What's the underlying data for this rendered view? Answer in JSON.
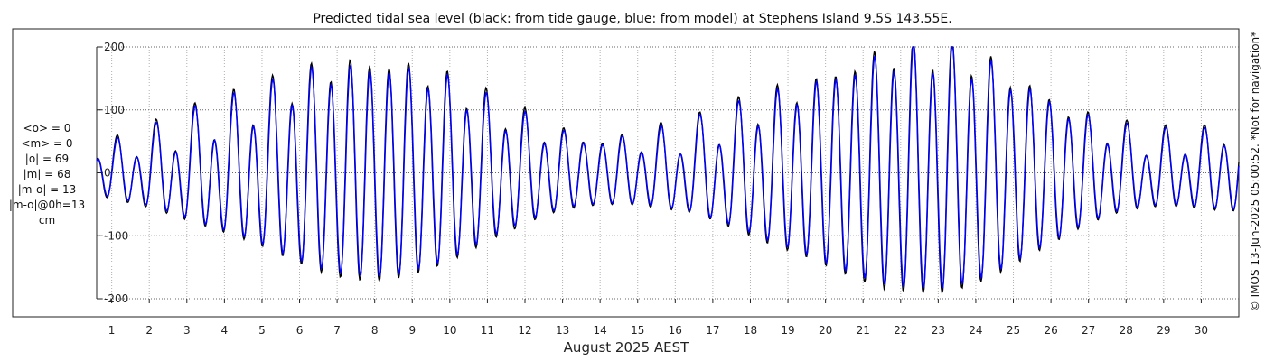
{
  "chart_data": {
    "type": "line",
    "title": "Predicted tidal sea level (black: from tide gauge, blue: from model) at Stephens Island 9.5S 143.55E.",
    "xlabel": "August 2025 AEST",
    "ylabel": "",
    "x_ticks": [
      "1",
      "2",
      "3",
      "4",
      "5",
      "6",
      "7",
      "8",
      "9",
      "10",
      "11",
      "12",
      "13",
      "14",
      "15",
      "16",
      "17",
      "18",
      "19",
      "20",
      "21",
      "22",
      "23",
      "24",
      "25",
      "26",
      "27",
      "28",
      "29",
      "30"
    ],
    "y_ticks": [
      "-200",
      "-100",
      "0",
      "100",
      "200"
    ],
    "xlim": [
      0.6,
      31.0
    ],
    "ylim": [
      -200,
      200
    ],
    "grid": true,
    "series": [
      {
        "name": "tide gauge",
        "color": "#000000",
        "amp_d1": [
          35,
          45,
          55,
          70,
          85,
          100,
          118,
          140,
          158,
          170,
          172,
          165,
          150,
          130,
          105,
          85,
          65,
          55,
          50,
          50,
          55,
          60,
          75,
          95,
          115,
          130,
          150,
          170,
          185,
          190,
          190,
          180,
          160,
          135,
          110,
          85,
          65,
          55,
          50,
          55,
          60
        ],
        "amp_d2": [
          -12,
          -20,
          -28,
          -33,
          -35,
          -35,
          -33,
          -28,
          -20,
          -10,
          0,
          10,
          18,
          24,
          26,
          24,
          18,
          8,
          -4,
          -15,
          -25,
          -30,
          -32,
          -30,
          -24,
          -15,
          -4,
          8,
          18,
          25,
          28,
          25,
          18,
          8,
          -4,
          -14,
          -22,
          -26,
          -26,
          -22,
          -15
        ]
      },
      {
        "name": "model",
        "color": "#0000ff",
        "amp_d1": [
          33,
          42,
          52,
          66,
          82,
          96,
          114,
          135,
          152,
          162,
          165,
          158,
          145,
          125,
          100,
          80,
          62,
          52,
          48,
          48,
          52,
          58,
          72,
          90,
          110,
          125,
          145,
          163,
          178,
          183,
          183,
          173,
          155,
          130,
          106,
          82,
          62,
          52,
          48,
          52,
          57
        ],
        "amp_d2": [
          -11,
          -18,
          -26,
          -31,
          -33,
          -33,
          -31,
          -26,
          -19,
          -9,
          0,
          9,
          17,
          22,
          24,
          22,
          17,
          7,
          -4,
          -14,
          -23,
          -28,
          -30,
          -28,
          -22,
          -14,
          -4,
          7,
          17,
          23,
          26,
          23,
          17,
          7,
          -4,
          -13,
          -20,
          -24,
          -24,
          -20,
          -14
        ]
      }
    ],
    "stats": [
      "<o> = 0",
      "<m> = 0",
      "|o| = 69",
      "|m| = 68",
      "|m-o| = 13",
      "|m-o|@0h=13",
      "cm"
    ]
  },
  "footer": {
    "copyright": "© IMOS 13-Jun-2025 05:00:52. *Not for navigation*"
  },
  "colors": {
    "observed": "#000000",
    "model": "#0000ff",
    "grid": "#b0b0b0"
  }
}
